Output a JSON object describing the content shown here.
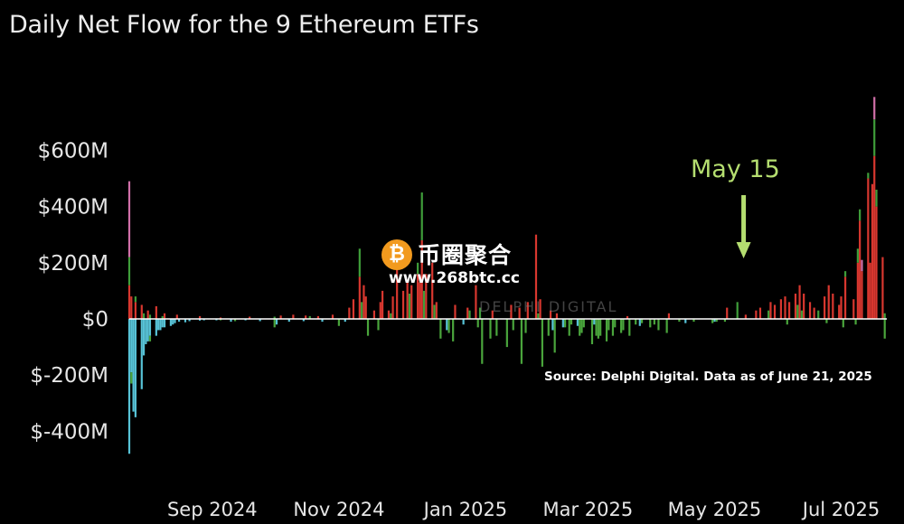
{
  "title": "Daily Net Flow for the 9 Ethereum ETFs",
  "annotation": {
    "label": "May 15",
    "color": "#b5de70",
    "date": "2025-05-15"
  },
  "source_note": "Source: Delphi Digital. Data as of June 21, 2025",
  "watermark": {
    "coin_glyph": "₿",
    "name": "币圈聚合",
    "url": "www.268btc.cc",
    "faint_brand": "DELPHI DIGITAL"
  },
  "colors": {
    "background": "#000000",
    "text": "#e6e6e6",
    "zero_line": "#ffffff",
    "inflow": "#d8372f",
    "inflow_secondary": "#3f9e3a",
    "outflow": "#57c2d6",
    "outflow_secondary": "#4aa53c",
    "accent_pink": "#d06fa8"
  },
  "chart_data": {
    "type": "bar",
    "title": "Daily Net Flow for the 9 Ethereum ETFs",
    "xlabel": "",
    "ylabel": "",
    "y_unit": "USD",
    "ylim": [
      -480000000,
      720000000
    ],
    "y_ticks": [
      {
        "value": 600000000,
        "label": "$600M"
      },
      {
        "value": 400000000,
        "label": "$400M"
      },
      {
        "value": 200000000,
        "label": "$200M"
      },
      {
        "value": 0,
        "label": "$0"
      },
      {
        "value": -200000000,
        "label": "$-200M"
      },
      {
        "value": -400000000,
        "label": "$-400M"
      }
    ],
    "x_ticks": [
      {
        "date": "2024-09-01",
        "label": "Sep 2024"
      },
      {
        "date": "2024-11-01",
        "label": "Nov 2024"
      },
      {
        "date": "2025-01-01",
        "label": "Jan 2025"
      },
      {
        "date": "2025-03-01",
        "label": "Mar 2025"
      },
      {
        "date": "2025-05-01",
        "label": "May 2025"
      },
      {
        "date": "2025-07-01",
        "label": "Jul 2025"
      }
    ],
    "x_range": [
      "2024-07-23",
      "2025-07-23"
    ],
    "grid": false,
    "legend": "none",
    "series": [
      {
        "color": "#d8372f",
        "points": [
          [
            "2024-07-23",
            120000000
          ],
          [
            "2024-07-24",
            80000000
          ],
          [
            "2024-07-26",
            60000000
          ],
          [
            "2024-07-29",
            50000000
          ],
          [
            "2024-08-01",
            30000000
          ],
          [
            "2024-08-05",
            45000000
          ],
          [
            "2024-08-09",
            20000000
          ],
          [
            "2024-08-15",
            15000000
          ],
          [
            "2024-08-26",
            10000000
          ],
          [
            "2024-09-05",
            5000000
          ],
          [
            "2024-09-19",
            8000000
          ],
          [
            "2024-10-04",
            12000000
          ],
          [
            "2024-10-10",
            15000000
          ],
          [
            "2024-10-16",
            12000000
          ],
          [
            "2024-10-22",
            10000000
          ],
          [
            "2024-10-29",
            15000000
          ],
          [
            "2024-11-06",
            40000000
          ],
          [
            "2024-11-08",
            70000000
          ],
          [
            "2024-11-11",
            150000000
          ],
          [
            "2024-11-13",
            120000000
          ],
          [
            "2024-11-14",
            80000000
          ],
          [
            "2024-11-18",
            30000000
          ],
          [
            "2024-11-21",
            60000000
          ],
          [
            "2024-11-22",
            100000000
          ],
          [
            "2024-11-25",
            30000000
          ],
          [
            "2024-11-27",
            80000000
          ],
          [
            "2024-11-29",
            250000000
          ],
          [
            "2024-12-02",
            100000000
          ],
          [
            "2024-12-04",
            140000000
          ],
          [
            "2024-12-06",
            120000000
          ],
          [
            "2024-12-09",
            160000000
          ],
          [
            "2024-12-10",
            130000000
          ],
          [
            "2024-12-11",
            280000000
          ],
          [
            "2024-12-13",
            160000000
          ],
          [
            "2024-12-16",
            200000000
          ],
          [
            "2024-12-18",
            60000000
          ],
          [
            "2024-12-27",
            50000000
          ],
          [
            "2025-01-02",
            40000000
          ],
          [
            "2025-01-06",
            120000000
          ],
          [
            "2025-01-14",
            30000000
          ],
          [
            "2025-01-23",
            50000000
          ],
          [
            "2025-01-27",
            40000000
          ],
          [
            "2025-01-31",
            60000000
          ],
          [
            "2025-02-04",
            300000000
          ],
          [
            "2025-02-06",
            70000000
          ],
          [
            "2025-02-11",
            30000000
          ],
          [
            "2025-02-14",
            20000000
          ],
          [
            "2025-03-20",
            10000000
          ],
          [
            "2025-04-09",
            20000000
          ],
          [
            "2025-05-07",
            40000000
          ],
          [
            "2025-05-16",
            15000000
          ],
          [
            "2025-05-21",
            30000000
          ],
          [
            "2025-05-23",
            40000000
          ],
          [
            "2025-05-28",
            60000000
          ],
          [
            "2025-05-30",
            50000000
          ],
          [
            "2025-06-02",
            70000000
          ],
          [
            "2025-06-04",
            80000000
          ],
          [
            "2025-06-06",
            60000000
          ],
          [
            "2025-06-09",
            90000000
          ],
          [
            "2025-06-11",
            120000000
          ],
          [
            "2025-06-13",
            90000000
          ],
          [
            "2025-06-16",
            60000000
          ],
          [
            "2025-06-18",
            40000000
          ],
          [
            "2025-06-23",
            80000000
          ],
          [
            "2025-06-25",
            120000000
          ],
          [
            "2025-06-27",
            90000000
          ],
          [
            "2025-06-30",
            50000000
          ],
          [
            "2025-07-01",
            80000000
          ],
          [
            "2025-07-03",
            150000000
          ],
          [
            "2025-07-07",
            70000000
          ],
          [
            "2025-07-09",
            200000000
          ],
          [
            "2025-07-10",
            350000000
          ],
          [
            "2025-07-11",
            170000000
          ],
          [
            "2025-07-14",
            500000000
          ],
          [
            "2025-07-15",
            200000000
          ],
          [
            "2025-07-16",
            480000000
          ],
          [
            "2025-07-17",
            580000000
          ],
          [
            "2025-07-18",
            400000000
          ],
          [
            "2025-07-21",
            220000000
          ]
        ]
      },
      {
        "color": "#3f9e3a",
        "points": [
          [
            "2024-07-23",
            100000000
          ],
          [
            "2024-07-26",
            20000000
          ],
          [
            "2024-07-30",
            20000000
          ],
          [
            "2024-08-02",
            15000000
          ],
          [
            "2024-08-08",
            10000000
          ],
          [
            "2024-10-01",
            8000000
          ],
          [
            "2024-10-18",
            10000000
          ],
          [
            "2024-11-11",
            100000000
          ],
          [
            "2024-11-12",
            60000000
          ],
          [
            "2024-11-26",
            20000000
          ],
          [
            "2024-12-05",
            90000000
          ],
          [
            "2024-12-09",
            40000000
          ],
          [
            "2024-12-11",
            170000000
          ],
          [
            "2024-12-12",
            100000000
          ],
          [
            "2024-12-17",
            50000000
          ],
          [
            "2025-01-03",
            30000000
          ],
          [
            "2025-01-08",
            40000000
          ],
          [
            "2025-02-05",
            20000000
          ],
          [
            "2025-05-12",
            60000000
          ],
          [
            "2025-05-27",
            30000000
          ],
          [
            "2025-06-10",
            50000000
          ],
          [
            "2025-06-12",
            30000000
          ],
          [
            "2025-06-20",
            30000000
          ],
          [
            "2025-07-03",
            20000000
          ],
          [
            "2025-07-09",
            50000000
          ],
          [
            "2025-07-10",
            40000000
          ],
          [
            "2025-07-14",
            20000000
          ],
          [
            "2025-07-17",
            130000000
          ],
          [
            "2025-07-18",
            60000000
          ],
          [
            "2025-07-22",
            20000000
          ]
        ]
      },
      {
        "color": "#d06fa8",
        "points": [
          [
            "2024-07-23",
            270000000
          ],
          [
            "2025-07-17",
            80000000
          ],
          [
            "2025-07-11",
            40000000
          ]
        ]
      },
      {
        "color": "#57c2d6",
        "points": [
          [
            "2024-07-23",
            -480000000
          ],
          [
            "2024-07-24",
            -190000000
          ],
          [
            "2024-07-25",
            -330000000
          ],
          [
            "2024-07-26",
            -350000000
          ],
          [
            "2024-07-29",
            -250000000
          ],
          [
            "2024-07-30",
            -130000000
          ],
          [
            "2024-07-31",
            -90000000
          ],
          [
            "2024-08-01",
            -80000000
          ],
          [
            "2024-08-02",
            -60000000
          ],
          [
            "2024-08-05",
            -60000000
          ],
          [
            "2024-08-06",
            -40000000
          ],
          [
            "2024-08-07",
            -40000000
          ],
          [
            "2024-08-08",
            -30000000
          ],
          [
            "2024-08-09",
            -30000000
          ],
          [
            "2024-08-12",
            -25000000
          ],
          [
            "2024-08-13",
            -20000000
          ],
          [
            "2024-08-14",
            -15000000
          ],
          [
            "2024-08-16",
            -10000000
          ],
          [
            "2024-08-19",
            -12000000
          ],
          [
            "2024-08-21",
            -8000000
          ],
          [
            "2024-08-26",
            -6000000
          ],
          [
            "2024-08-28",
            -5000000
          ],
          [
            "2024-09-03",
            -5000000
          ],
          [
            "2024-09-10",
            -10000000
          ],
          [
            "2024-09-17",
            -5000000
          ],
          [
            "2024-09-24",
            -8000000
          ],
          [
            "2024-10-02",
            -20000000
          ],
          [
            "2024-10-08",
            -10000000
          ],
          [
            "2024-10-15",
            -8000000
          ],
          [
            "2024-10-24",
            -10000000
          ],
          [
            "2024-11-04",
            -10000000
          ],
          [
            "2024-12-23",
            -40000000
          ],
          [
            "2024-12-31",
            -20000000
          ],
          [
            "2025-02-12",
            -40000000
          ],
          [
            "2025-02-17",
            -30000000
          ],
          [
            "2025-02-24",
            -25000000
          ],
          [
            "2025-03-04",
            -20000000
          ],
          [
            "2025-03-26",
            -25000000
          ],
          [
            "2025-04-17",
            -15000000
          ],
          [
            "2025-05-01",
            -10000000
          ]
        ]
      },
      {
        "color": "#4aa53c",
        "points": [
          [
            "2024-07-24",
            -40000000
          ],
          [
            "2024-08-02",
            -20000000
          ],
          [
            "2024-09-05",
            -5000000
          ],
          [
            "2024-09-12",
            -8000000
          ],
          [
            "2024-10-01",
            -30000000
          ],
          [
            "2024-11-01",
            -25000000
          ],
          [
            "2024-11-15",
            -60000000
          ],
          [
            "2024-11-20",
            -40000000
          ],
          [
            "2024-12-20",
            -70000000
          ],
          [
            "2024-12-24",
            -50000000
          ],
          [
            "2024-12-26",
            -80000000
          ],
          [
            "2025-01-07",
            -30000000
          ],
          [
            "2025-01-09",
            -160000000
          ],
          [
            "2025-01-13",
            -70000000
          ],
          [
            "2025-01-16",
            -60000000
          ],
          [
            "2025-01-21",
            -100000000
          ],
          [
            "2025-01-24",
            -40000000
          ],
          [
            "2025-01-28",
            -160000000
          ],
          [
            "2025-01-30",
            -50000000
          ],
          [
            "2025-02-07",
            -170000000
          ],
          [
            "2025-02-10",
            -60000000
          ],
          [
            "2025-02-13",
            -120000000
          ],
          [
            "2025-02-18",
            -30000000
          ],
          [
            "2025-02-20",
            -60000000
          ],
          [
            "2025-02-21",
            -20000000
          ],
          [
            "2025-02-25",
            -60000000
          ],
          [
            "2025-02-26",
            -50000000
          ],
          [
            "2025-02-27",
            -30000000
          ],
          [
            "2025-03-03",
            -90000000
          ],
          [
            "2025-03-05",
            -60000000
          ],
          [
            "2025-03-06",
            -70000000
          ],
          [
            "2025-03-07",
            -60000000
          ],
          [
            "2025-03-10",
            -80000000
          ],
          [
            "2025-03-11",
            -40000000
          ],
          [
            "2025-03-13",
            -60000000
          ],
          [
            "2025-03-14",
            -30000000
          ],
          [
            "2025-03-17",
            -50000000
          ],
          [
            "2025-03-18",
            -40000000
          ],
          [
            "2025-03-21",
            -60000000
          ],
          [
            "2025-03-24",
            -20000000
          ],
          [
            "2025-03-27",
            -15000000
          ],
          [
            "2025-03-31",
            -30000000
          ],
          [
            "2025-04-02",
            -20000000
          ],
          [
            "2025-04-04",
            -40000000
          ],
          [
            "2025-04-08",
            -50000000
          ],
          [
            "2025-04-14",
            -10000000
          ],
          [
            "2025-04-21",
            -10000000
          ],
          [
            "2025-04-30",
            -15000000
          ],
          [
            "2025-05-02",
            -10000000
          ],
          [
            "2025-05-06",
            -10000000
          ],
          [
            "2025-06-05",
            -20000000
          ],
          [
            "2025-06-24",
            -15000000
          ],
          [
            "2025-07-02",
            -30000000
          ],
          [
            "2025-07-08",
            -20000000
          ],
          [
            "2025-07-22",
            -70000000
          ]
        ]
      }
    ]
  }
}
